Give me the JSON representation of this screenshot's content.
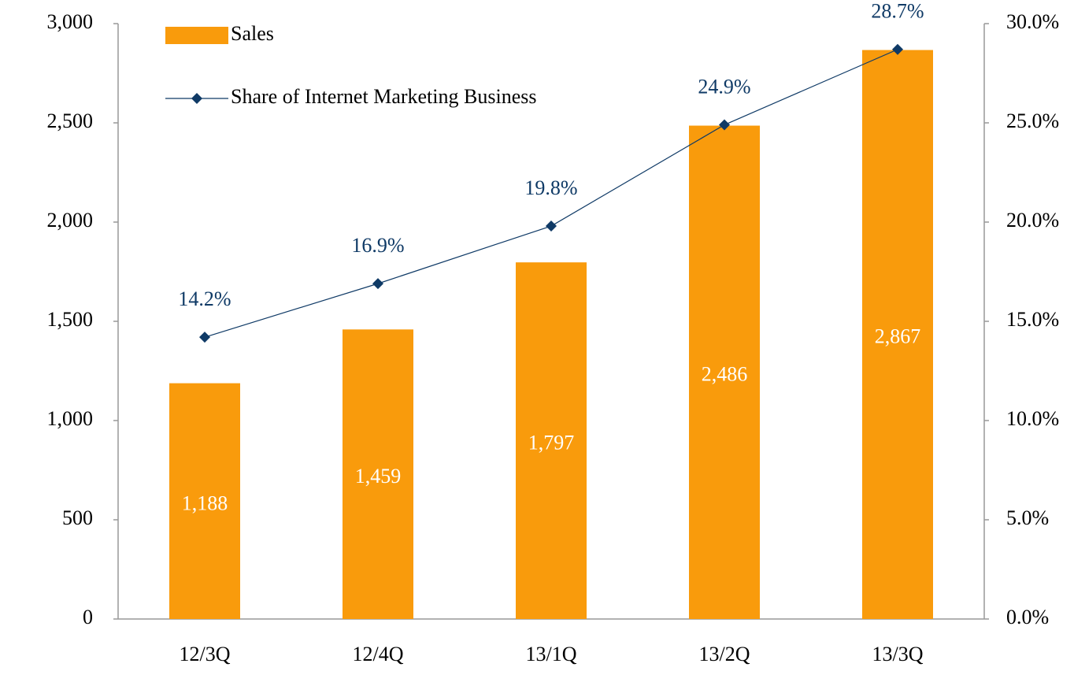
{
  "chart_data": {
    "type": "bar",
    "categories": [
      "12/3Q",
      "12/4Q",
      "13/1Q",
      "13/2Q",
      "13/3Q"
    ],
    "series": [
      {
        "name": "Sales",
        "type": "bar",
        "color": "#f99b0c",
        "values": [
          1188,
          1459,
          1797,
          2486,
          2867
        ],
        "value_labels": [
          "1,188",
          "1,459",
          "1,797",
          "2,486",
          "2,867"
        ]
      },
      {
        "name": "Share of Internet Marketing Business",
        "type": "line",
        "axis": "y2",
        "color": "#0f3a66",
        "values": [
          14.2,
          16.9,
          19.8,
          24.9,
          28.7
        ],
        "value_labels": [
          "14.2%",
          "16.9%",
          "19.8%",
          "24.9%",
          "28.7%"
        ]
      }
    ],
    "ylim": [
      0,
      3000
    ],
    "yticks": [
      0,
      500,
      {
        "value": 1000,
        "label": "1,000"
      },
      {
        "value": 1500,
        "label": "1,500"
      },
      {
        "value": 2000,
        "label": "2,000"
      },
      {
        "value": 2500,
        "label": "2,500"
      },
      {
        "value": 3000,
        "label": "3,000"
      }
    ],
    "y2lim": [
      0,
      30
    ],
    "y2ticks": [
      {
        "value": 0,
        "label": "0.0%"
      },
      {
        "value": 5,
        "label": "5.0%"
      },
      {
        "value": 10,
        "label": "10.0%"
      },
      {
        "value": 15,
        "label": "15.0%"
      },
      {
        "value": 20,
        "label": "20.0%"
      },
      {
        "value": 25,
        "label": "25.0%"
      },
      {
        "value": 30,
        "label": "30.0%"
      }
    ],
    "legend": "upper left"
  }
}
